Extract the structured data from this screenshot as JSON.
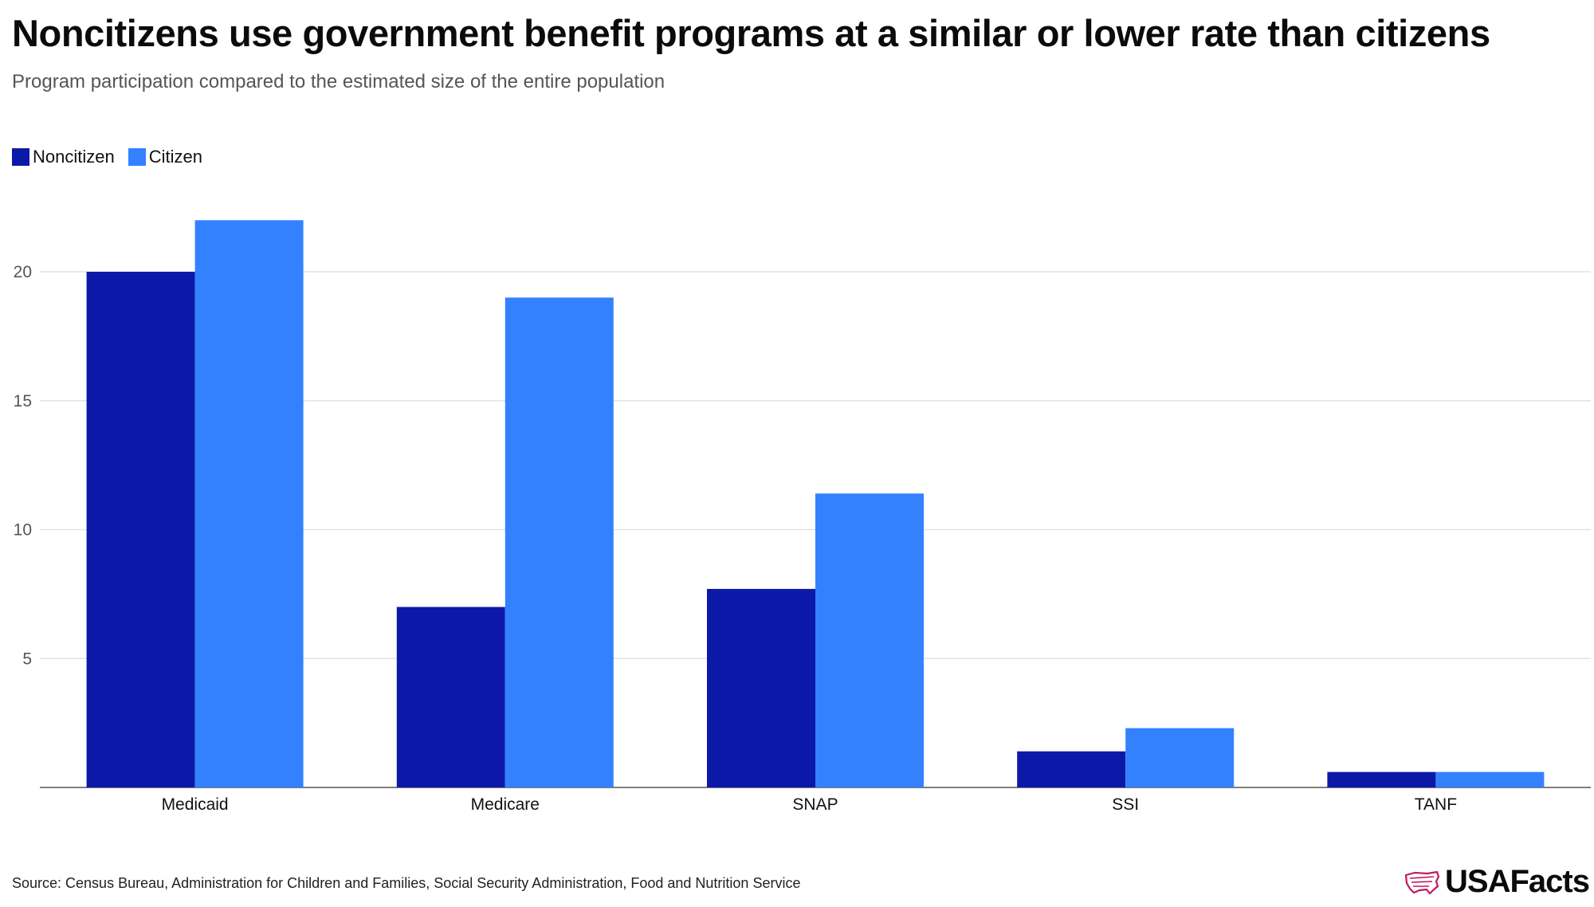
{
  "header": {
    "title": "Noncitizens use government benefit programs at a similar or lower rate than citizens",
    "subtitle": "Program participation compared to the estimated size of the entire population"
  },
  "legend": {
    "noncitizen_label": "Noncitizen",
    "citizen_label": "Citizen"
  },
  "colors": {
    "noncitizen": "#0c19a8",
    "citizen": "#3381ff",
    "gridline": "#e2e2e2",
    "axis": "#555555",
    "brand_accent": "#c2185b"
  },
  "chart_data": {
    "type": "bar",
    "title": "Noncitizens use government benefit programs at a similar or lower rate than citizens",
    "subtitle": "Program participation compared to the estimated size of the entire population",
    "xlabel": "",
    "ylabel": "",
    "categories": [
      "Medicaid",
      "Medicare",
      "SNAP",
      "SSI",
      "TANF"
    ],
    "series": [
      {
        "name": "Noncitizen",
        "values": [
          20,
          7,
          7.7,
          1.4,
          0.6
        ]
      },
      {
        "name": "Citizen",
        "values": [
          22,
          19,
          11.4,
          2.3,
          0.6
        ]
      }
    ],
    "yticks": [
      5,
      10,
      15,
      20
    ],
    "ylim": [
      0,
      22
    ],
    "grid": true,
    "legend_position": "top-left"
  },
  "footer": {
    "source": "Source: Census Bureau, Administration for Children and Families, Social Security Administration, Food and Nutrition Service",
    "brand": "USAFacts",
    "brand_icon": "usa-map-icon"
  }
}
